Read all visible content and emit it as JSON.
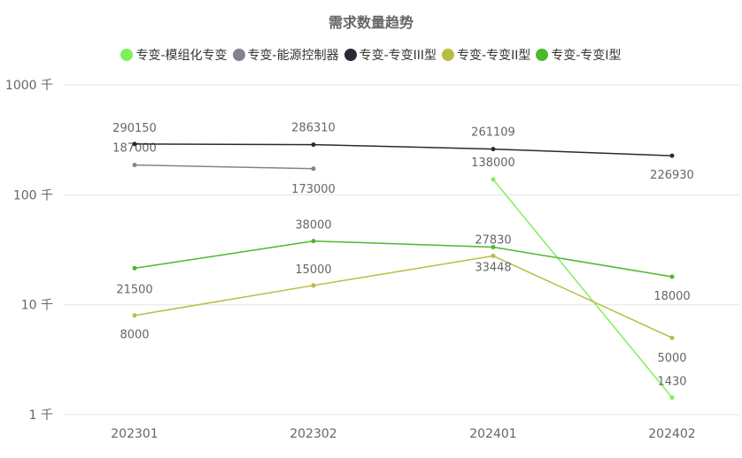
{
  "chart_data": {
    "type": "line",
    "title": "需求数量趋势",
    "categories": [
      "202301",
      "202302",
      "202401",
      "202402"
    ],
    "y_scale": "log",
    "ylim": [
      1000,
      1000000
    ],
    "y_ticks": [
      {
        "value": 1000,
        "label": "1 千"
      },
      {
        "value": 10000,
        "label": "10 千"
      },
      {
        "value": 100000,
        "label": "100 千"
      },
      {
        "value": 1000000,
        "label": "1000 千"
      }
    ],
    "grid": "horizontal",
    "legend_position": "top",
    "series": [
      {
        "name": "专变-模组化专变",
        "color": "#7ff05c",
        "values": [
          null,
          null,
          138000,
          1430
        ]
      },
      {
        "name": "专变-能源控制器",
        "color": "#84828e",
        "values": [
          187000,
          173000,
          null,
          null
        ]
      },
      {
        "name": "专变-专变III型",
        "color": "#2a2a36",
        "values": [
          290150,
          286310,
          261109,
          226930
        ]
      },
      {
        "name": "专变-专变II型",
        "color": "#bcbb44",
        "values": [
          8000,
          15000,
          27830,
          5000
        ]
      },
      {
        "name": "专变-专变I型",
        "color": "#4cb82c",
        "values": [
          21500,
          38000,
          33448,
          18000
        ]
      }
    ]
  }
}
